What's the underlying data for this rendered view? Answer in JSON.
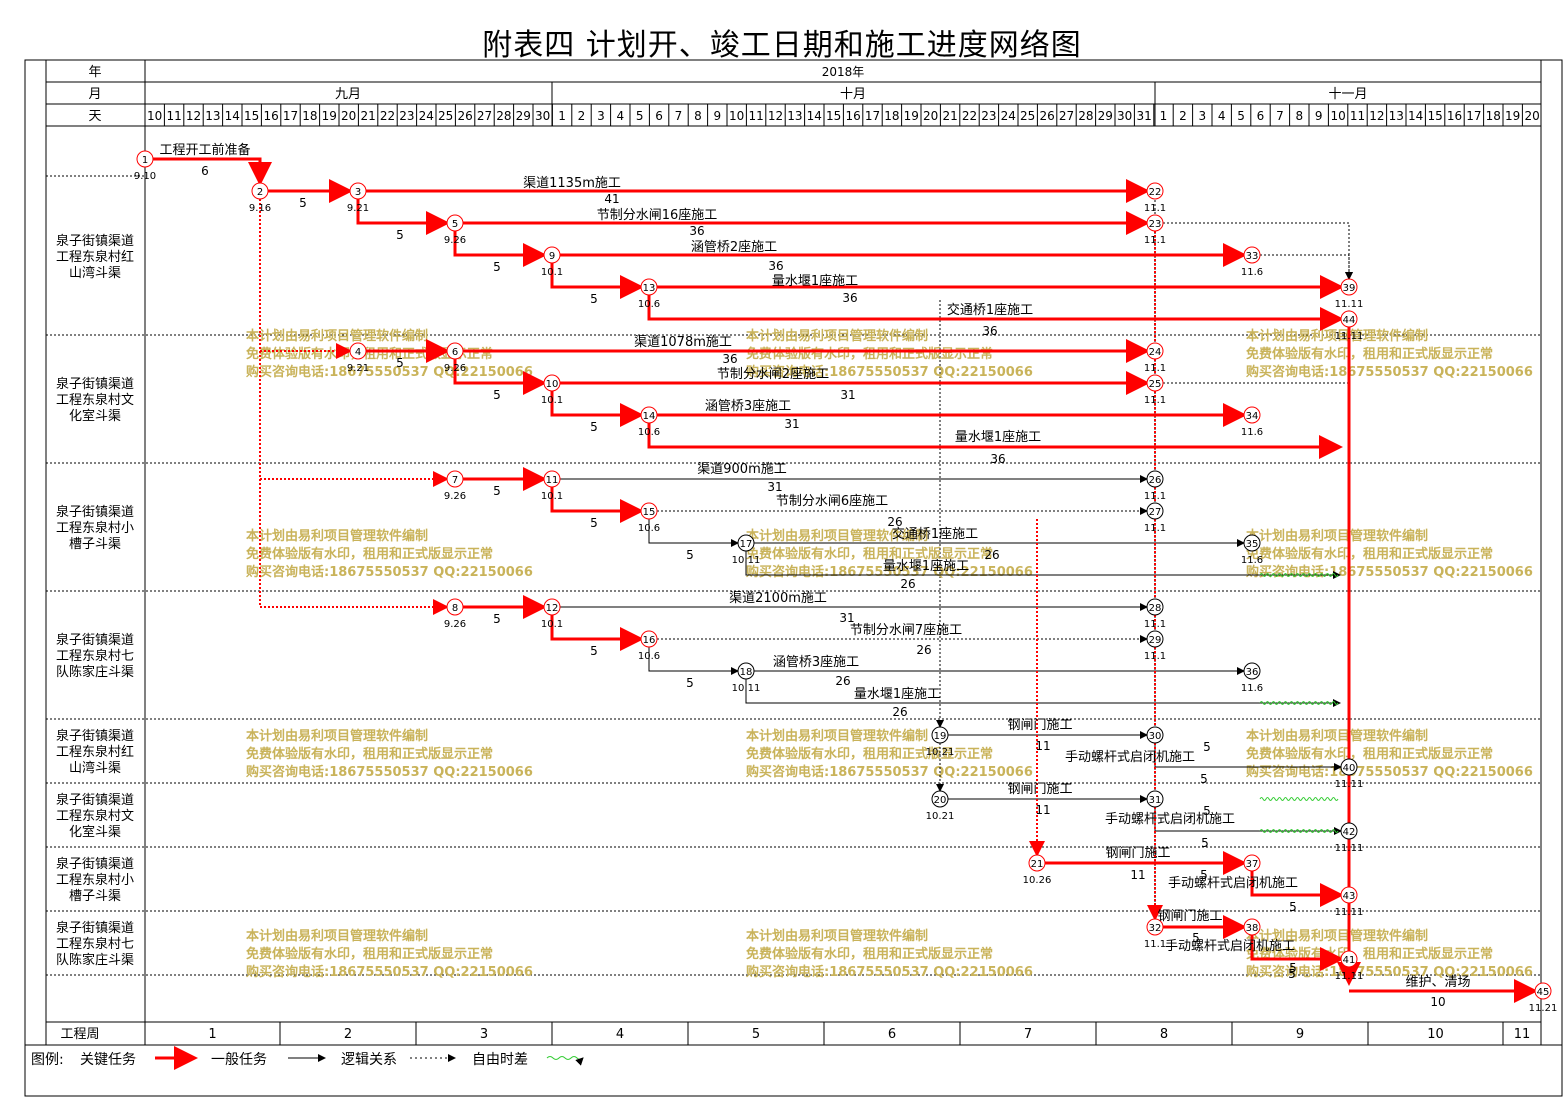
{
  "title": "附表四  计划开、竣工日期和施工进度网络图",
  "header": {
    "year_label": "年",
    "month_label": "月",
    "day_label": "天",
    "year_value": "2018年",
    "months": [
      "九月",
      "十月",
      "十一月"
    ],
    "days_sep": [
      "10",
      "11",
      "12",
      "13",
      "14",
      "15",
      "16",
      "17",
      "18",
      "19",
      "20",
      "21",
      "22",
      "23",
      "24",
      "25",
      "26",
      "27",
      "28",
      "29",
      "30"
    ],
    "days_oct": [
      "1",
      "2",
      "3",
      "4",
      "5",
      "6",
      "7",
      "8",
      "9",
      "10",
      "11",
      "12",
      "13",
      "14",
      "15",
      "16",
      "17",
      "18",
      "19",
      "20",
      "21",
      "22",
      "23",
      "24",
      "25",
      "26",
      "27",
      "28",
      "29",
      "30",
      "31"
    ],
    "days_nov": [
      "1",
      "2",
      "3",
      "4",
      "5",
      "6",
      "7",
      "8",
      "9",
      "10",
      "11",
      "12",
      "13",
      "14",
      "15",
      "16",
      "17",
      "18",
      "19",
      "20"
    ]
  },
  "rows": [
    "泉子街镇渠道工程东泉村红山湾斗渠",
    "泉子街镇渠道工程东泉村文化室斗渠",
    "泉子街镇渠道工程东泉村小槽子斗渠",
    "泉子街镇渠道工程东泉村七队陈家庄斗渠",
    "泉子街镇渠道工程东泉村红山湾斗渠",
    "泉子街镇渠道工程东泉村文化室斗渠",
    "泉子街镇渠道工程东泉村小槽子斗渠",
    "泉子街镇渠道工程东泉村七队陈家庄斗渠"
  ],
  "week_row": {
    "label": "工程周",
    "weeks": [
      "1",
      "2",
      "3",
      "4",
      "5",
      "6",
      "7",
      "8",
      "9",
      "10",
      "11"
    ]
  },
  "legend": {
    "title": "图例:",
    "critical": "关键任务",
    "normal": "一般任务",
    "logic": "逻辑关系",
    "float": "自由时差"
  },
  "watermark": [
    "本计划由易利项目管理软件编制",
    "免费体验版有水印，租用和正式版显示正常",
    "购买咨询电话:18675550537 QQ:22150066"
  ],
  "tasks": [
    {
      "name": "工程开工前准备",
      "duration": "6"
    },
    {
      "name": "渠道1135m施工",
      "duration": "41"
    },
    {
      "name": "节制分水闸16座施工",
      "duration": "36"
    },
    {
      "name": "涵管桥2座施工",
      "duration": "36"
    },
    {
      "name": "量水堰1座施工",
      "duration": "36"
    },
    {
      "name": "交通桥1座施工",
      "duration": "36"
    },
    {
      "name": "渠道1078m施工",
      "duration": "36"
    },
    {
      "name": "节制分水闸2座施工",
      "duration": "31"
    },
    {
      "name": "涵管桥3座施工",
      "duration": "31"
    },
    {
      "name": "量水堰1座施工",
      "duration": "36"
    },
    {
      "name": "渠道900m施工",
      "duration": "31"
    },
    {
      "name": "节制分水闸6座施工",
      "duration": "26"
    },
    {
      "name": "交通桥1座施工",
      "duration": "26"
    },
    {
      "name": "量水堰1座施工",
      "duration": "26"
    },
    {
      "name": "渠道2100m施工",
      "duration": "31"
    },
    {
      "name": "节制分水闸7座施工",
      "duration": "26"
    },
    {
      "name": "涵管桥3座施工",
      "duration": "26"
    },
    {
      "name": "量水堰1座施工",
      "duration": "26"
    },
    {
      "name": "钢闸门施工",
      "duration": "11"
    },
    {
      "name": "手动螺杆式启闭机施工",
      "duration": "5"
    },
    {
      "name": "钢闸门施工",
      "duration": "11"
    },
    {
      "name": "手动螺杆式启闭机施工",
      "duration": "5"
    },
    {
      "name": "钢闸门施工",
      "duration": "11"
    },
    {
      "name": "手动螺杆式启闭机施工",
      "duration": "5"
    },
    {
      "name": "钢闸门施工",
      "duration": "5"
    },
    {
      "name": "手动螺杆式启闭机施工",
      "duration": "5"
    },
    {
      "name": "维护、清场",
      "duration": "10"
    }
  ],
  "link_durations": [
    "5",
    "5",
    "5",
    "5",
    "5",
    "5",
    "5",
    "5",
    "5",
    "5",
    "5",
    "5",
    "5",
    "5",
    "5",
    "5",
    "5"
  ],
  "nodes": [
    {
      "id": "1",
      "date": "9.10"
    },
    {
      "id": "2",
      "date": "9.16"
    },
    {
      "id": "3",
      "date": "9.21"
    },
    {
      "id": "4",
      "date": "9.21"
    },
    {
      "id": "5",
      "date": "9.26"
    },
    {
      "id": "6",
      "date": "9.26"
    },
    {
      "id": "7",
      "date": "9.26"
    },
    {
      "id": "8",
      "date": "9.26"
    },
    {
      "id": "9",
      "date": "10.1"
    },
    {
      "id": "10",
      "date": "10.1"
    },
    {
      "id": "11",
      "date": "10.1"
    },
    {
      "id": "12",
      "date": "10.1"
    },
    {
      "id": "13",
      "date": "10.6"
    },
    {
      "id": "14",
      "date": "10.6"
    },
    {
      "id": "15",
      "date": "10.6"
    },
    {
      "id": "16",
      "date": "10.6"
    },
    {
      "id": "17",
      "date": "10.11"
    },
    {
      "id": "18",
      "date": "10.11"
    },
    {
      "id": "19",
      "date": "10.21"
    },
    {
      "id": "20",
      "date": "10.21"
    },
    {
      "id": "21",
      "date": "10.26"
    },
    {
      "id": "22",
      "date": "11.1"
    },
    {
      "id": "23",
      "date": "11.1"
    },
    {
      "id": "24",
      "date": "11.1"
    },
    {
      "id": "25",
      "date": "11.1"
    },
    {
      "id": "26",
      "date": "11.1"
    },
    {
      "id": "27",
      "date": "11.1"
    },
    {
      "id": "28",
      "date": "11.1"
    },
    {
      "id": "29",
      "date": "11.1"
    },
    {
      "id": "30",
      "date": ""
    },
    {
      "id": "31",
      "date": ""
    },
    {
      "id": "32",
      "date": "11.1"
    },
    {
      "id": "33",
      "date": "11.6"
    },
    {
      "id": "34",
      "date": "11.6"
    },
    {
      "id": "35",
      "date": "11.6"
    },
    {
      "id": "36",
      "date": "11.6"
    },
    {
      "id": "37",
      "date": ""
    },
    {
      "id": "38",
      "date": ""
    },
    {
      "id": "39",
      "date": "11.11"
    },
    {
      "id": "40",
      "date": "11.11"
    },
    {
      "id": "41",
      "date": "11.11"
    },
    {
      "id": "42",
      "date": "11.11"
    },
    {
      "id": "43",
      "date": "11.11"
    },
    {
      "id": "44",
      "date": "11.11"
    },
    {
      "id": "45",
      "date": "11.21"
    }
  ],
  "colors": {
    "critical": "#ff0000",
    "normal": "#000000",
    "float": "#33cc33",
    "watermark": "#c9b35a",
    "grid": "#000000"
  }
}
